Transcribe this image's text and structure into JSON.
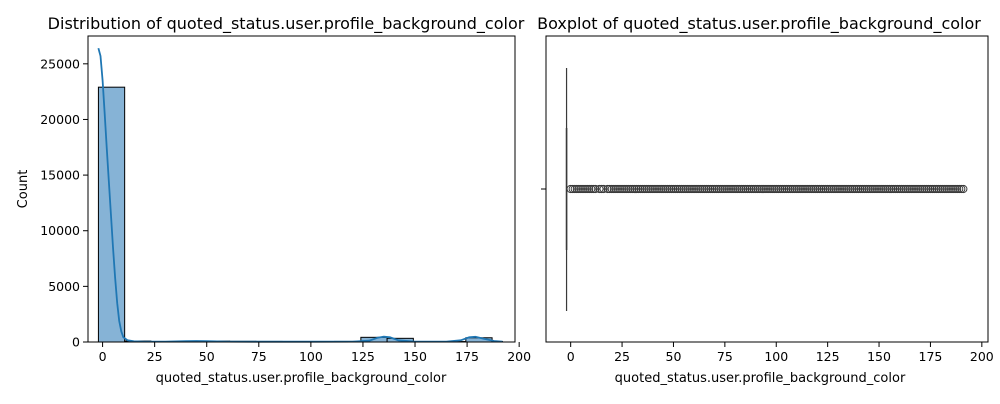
{
  "chart_data": [
    {
      "type": "bar",
      "kind": "histogram_with_kde",
      "title": "Distribution of quoted_status.user.profile_background_color",
      "xlabel": "quoted_status.user.profile_background_color",
      "ylabel": "Count",
      "xlim": [
        -7,
        198
      ],
      "ylim": [
        0,
        27500
      ],
      "xticks": [
        0,
        25,
        50,
        75,
        100,
        125,
        150,
        175,
        200
      ],
      "yticks": [
        0,
        5000,
        10000,
        15000,
        20000,
        25000
      ],
      "bin_edges": [
        -2,
        10.6,
        23.2,
        35.8,
        48.4,
        61,
        73.6,
        86.2,
        98.8,
        111.4,
        124,
        136.6,
        149.2,
        161.8,
        174.4,
        187,
        192
      ],
      "values": [
        22900,
        90,
        30,
        40,
        80,
        60,
        50,
        40,
        40,
        50,
        420,
        330,
        40,
        40,
        380,
        40
      ],
      "kde": {
        "x": [
          -2,
          -1,
          0,
          1,
          2,
          3,
          4,
          5,
          6,
          7,
          8,
          9,
          10,
          12,
          15,
          20,
          30,
          40,
          45,
          50,
          60,
          80,
          100,
          120,
          128,
          132,
          135,
          138,
          142,
          150,
          165,
          172,
          176,
          179,
          183,
          188,
          192
        ],
        "y": [
          26400,
          25700,
          23500,
          20500,
          17500,
          14500,
          11500,
          8500,
          5800,
          3500,
          1900,
          950,
          420,
          150,
          60,
          40,
          40,
          70,
          90,
          70,
          40,
          30,
          30,
          40,
          120,
          380,
          480,
          420,
          150,
          40,
          40,
          150,
          420,
          470,
          300,
          90,
          40
        ]
      },
      "colors": {
        "bar": "#86b3d6",
        "bar_edge": "#000000",
        "kde": "#1f77b4"
      }
    },
    {
      "type": "boxplot",
      "title": "Boxplot of quoted_status.user.profile_background_color",
      "xlabel": "quoted_status.user.profile_background_color",
      "xlim": [
        -12,
        203
      ],
      "xticks": [
        0,
        25,
        50,
        75,
        100,
        125,
        150,
        175,
        200
      ],
      "box": {
        "median": -2,
        "q1": -2,
        "q3": -2,
        "whisker_low": -2,
        "whisker_high": -2
      },
      "outliers": [
        0,
        1,
        2,
        3,
        4,
        5,
        6,
        7,
        8,
        9,
        10,
        11,
        12,
        14,
        15,
        16,
        18,
        19,
        20,
        21,
        22,
        23,
        24,
        25,
        26,
        27,
        28,
        29,
        30,
        31,
        32,
        33,
        34,
        35,
        36,
        37,
        38,
        39,
        40,
        41,
        42,
        43,
        44,
        45,
        46,
        47,
        48,
        49,
        50,
        51,
        52,
        53,
        54,
        55,
        56,
        57,
        58,
        59,
        60,
        61,
        62,
        63,
        64,
        65,
        66,
        67,
        68,
        69,
        70,
        71,
        72,
        73,
        74,
        75,
        76,
        77,
        78,
        79,
        80,
        81,
        82,
        83,
        84,
        85,
        86,
        87,
        88,
        89,
        90,
        91,
        92,
        93,
        94,
        95,
        96,
        97,
        98,
        99,
        100,
        101,
        102,
        103,
        104,
        105,
        106,
        107,
        108,
        109,
        110,
        111,
        112,
        113,
        114,
        115,
        116,
        117,
        118,
        119,
        120,
        121,
        122,
        123,
        124,
        125,
        126,
        127,
        128,
        129,
        130,
        131,
        132,
        133,
        134,
        135,
        136,
        137,
        138,
        139,
        140,
        141,
        142,
        143,
        144,
        145,
        146,
        147,
        148,
        149,
        150,
        151,
        152,
        153,
        154,
        155,
        156,
        157,
        158,
        159,
        160,
        161,
        162,
        163,
        164,
        165,
        166,
        167,
        168,
        169,
        170,
        171,
        172,
        173,
        174,
        175,
        176,
        177,
        178,
        179,
        180,
        181,
        182,
        183,
        184,
        185,
        186,
        187,
        188,
        189,
        190,
        191
      ],
      "colors": {
        "box": "#3a3a3a",
        "outlier_edge": "#3a3a3a"
      }
    }
  ]
}
